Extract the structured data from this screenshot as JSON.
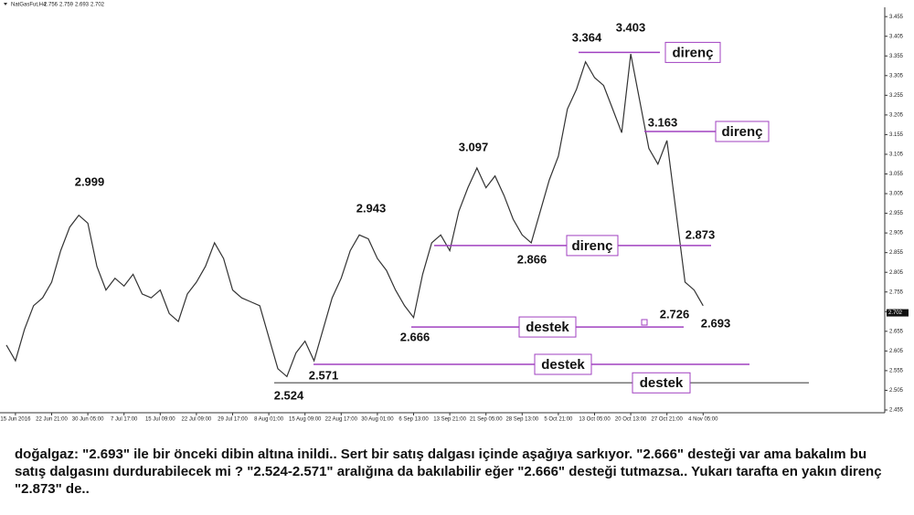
{
  "chart_data": {
    "type": "line",
    "header": "NatGasFut,H4",
    "ohlc": [
      2.756,
      2.759,
      2.693,
      2.702
    ],
    "last_price": 2.702,
    "categories": [
      null,
      "15 Jun 2016",
      null,
      null,
      null,
      "22 Jun 21:00",
      null,
      null,
      null,
      "30 Jun 05:00",
      null,
      null,
      null,
      "7 Jul 17:00",
      null,
      null,
      null,
      "15 Jul 09:00",
      null,
      null,
      null,
      "22 Jul 09:00",
      null,
      null,
      null,
      "29 Jul 17:00",
      null,
      null,
      null,
      "8 Aug 01:00",
      null,
      null,
      null,
      "15 Aug 09:00",
      null,
      null,
      null,
      "22 Aug 17:00",
      null,
      null,
      null,
      "30 Aug 01:00",
      null,
      null,
      null,
      "6 Sep 13:00",
      null,
      null,
      null,
      "13 Sep 21:00",
      null,
      null,
      null,
      "21 Sep 05:00",
      null,
      null,
      null,
      "28 Sep 13:00",
      null,
      null,
      null,
      "5 Oct 21:00",
      null,
      null,
      null,
      "13 Oct 05:00",
      null,
      null,
      null,
      "20 Oct 13:00",
      null,
      null,
      null,
      "27 Oct 21:00",
      null,
      null,
      null,
      "4 Nov 05:00"
    ],
    "values": [
      2.62,
      2.58,
      2.66,
      2.72,
      2.74,
      2.78,
      2.86,
      2.92,
      2.95,
      2.93,
      2.82,
      2.76,
      2.79,
      2.77,
      2.8,
      2.75,
      2.74,
      2.76,
      2.7,
      2.68,
      2.75,
      2.78,
      2.82,
      2.88,
      2.84,
      2.76,
      2.74,
      2.73,
      2.72,
      2.64,
      2.56,
      2.54,
      2.6,
      2.63,
      2.58,
      2.66,
      2.74,
      2.79,
      2.86,
      2.9,
      2.89,
      2.84,
      2.81,
      2.76,
      2.72,
      2.69,
      2.8,
      2.88,
      2.9,
      2.86,
      2.96,
      3.02,
      3.07,
      3.02,
      3.05,
      3.0,
      2.94,
      2.9,
      2.88,
      2.96,
      3.04,
      3.1,
      3.22,
      3.27,
      3.34,
      3.3,
      3.28,
      3.22,
      3.16,
      3.36,
      3.24,
      3.12,
      3.08,
      3.14,
      2.96,
      2.78,
      2.76,
      2.72
    ],
    "color": "#333333",
    "ylim": [
      2.448,
      3.474
    ],
    "yticks": [
      2.455,
      2.505,
      2.555,
      2.605,
      2.655,
      2.705,
      2.755,
      2.805,
      2.855,
      2.905,
      2.955,
      3.005,
      3.055,
      3.105,
      3.155,
      3.205,
      3.255,
      3.305,
      3.355,
      3.405,
      3.455
    ],
    "annotations": [
      2.999,
      2.943,
      3.097,
      3.364,
      3.403,
      3.163,
      2.873,
      2.866,
      2.726,
      2.693,
      2.666,
      2.571,
      2.524
    ],
    "levels": [
      {
        "label": "direnç",
        "value": 3.364,
        "color": "#a040c0"
      },
      {
        "label": "direnç",
        "value": 3.163,
        "color": "#a040c0"
      },
      {
        "label": "direnç",
        "value": 2.873,
        "color": "#a040c0"
      },
      {
        "label": "destek",
        "value": 2.666,
        "color": "#a040c0"
      },
      {
        "label": "destek",
        "value": 2.571,
        "color": "#a040c0"
      },
      {
        "label": "destek",
        "value": 2.524,
        "color": "#777777"
      }
    ]
  },
  "caption": "doğalgaz: \"2.693\" ile bir önceki dibin altına inildi.. Sert bir satış dalgası içinde aşağıya sarkıyor. \"2.666\" desteği var ama bakalım bu satış dalgasını durdurabilecek mi ? \"2.524-2.571\" aralığına da bakılabilir eğer \"2.666\" desteği tutmazsa.. Yukarı tarafta en yakın direnç \"2.873\" de.."
}
